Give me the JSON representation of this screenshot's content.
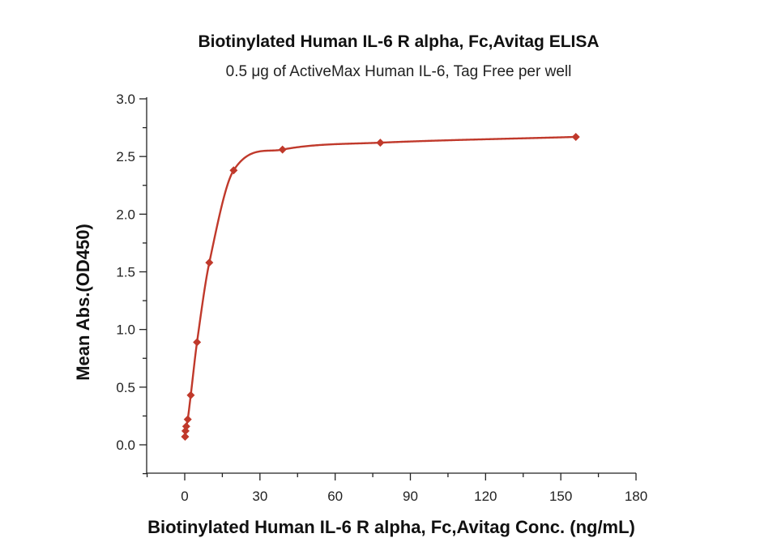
{
  "chart_data": {
    "type": "scatter",
    "title": "Biotinylated Human IL-6 R alpha, Fc,Avitag ELISA",
    "subtitle": "0.5 μg of ActiveMax Human IL-6, Tag Free per well",
    "xlabel": "Biotinylated Human IL-6 R alpha, Fc,Avitag Conc. (ng/mL)",
    "ylabel": "Mean Abs.(OD450)",
    "xlim": [
      -15,
      180
    ],
    "ylim": [
      -0.25,
      3.0
    ],
    "xticks": [
      0,
      30,
      60,
      90,
      120,
      150,
      180
    ],
    "xtick_labels": [
      "0",
      "30",
      "60",
      "90",
      "120",
      "150",
      "180"
    ],
    "yticks": [
      0.0,
      0.5,
      1.0,
      1.5,
      2.0,
      2.5,
      3.0
    ],
    "ytick_labels": [
      "0.0",
      "0.5",
      "1.0",
      "1.5",
      "2.0",
      "2.5",
      "3.0"
    ],
    "grid": false,
    "legend": "none",
    "series": [
      {
        "marker": "diamond",
        "color": "#c0392b",
        "fit": "sigmoidal",
        "x": [
          0.15,
          0.3,
          0.6,
          1.2,
          2.4,
          4.9,
          9.8,
          19.5,
          39,
          78,
          156
        ],
        "y": [
          0.07,
          0.12,
          0.16,
          0.22,
          0.43,
          0.89,
          1.58,
          2.38,
          2.56,
          2.62,
          2.67
        ]
      }
    ]
  }
}
